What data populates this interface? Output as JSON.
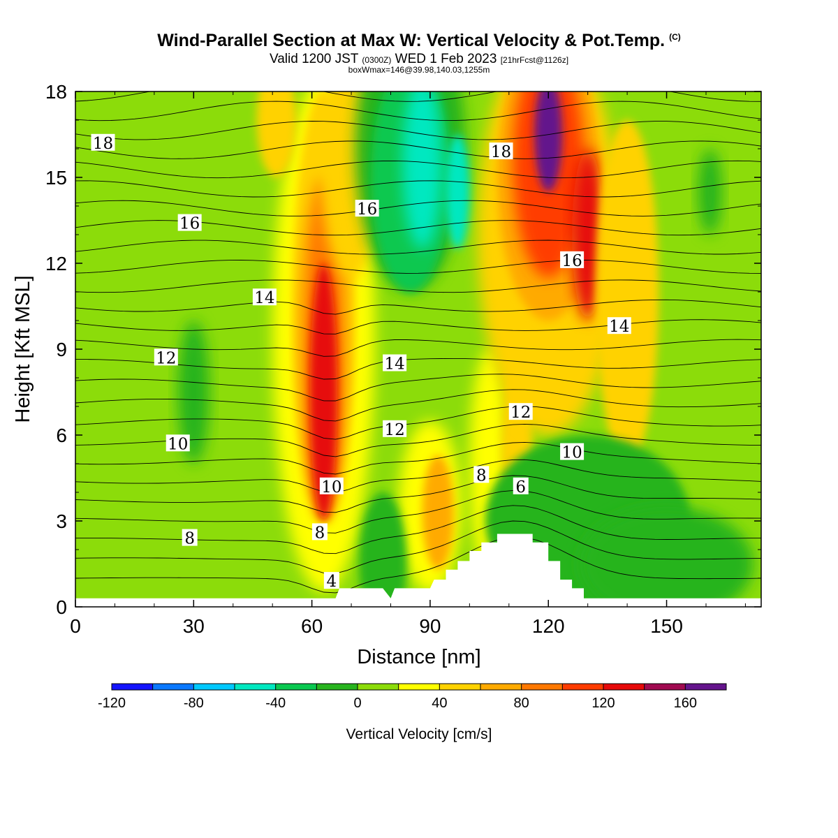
{
  "header": {
    "title": "Wind-Parallel Section at Max W: Vertical Velocity & Pot.Temp.",
    "copyright": "(C)",
    "valid_a": "Valid 1200 JST",
    "valid_b": "(0300Z)",
    "valid_c": "WED 1 Feb 2023",
    "valid_d": "[21hrFcst@1126z]",
    "box": "boxWmax=146@39.98,140.03,1255m"
  },
  "chart_data": {
    "type": "heatmap",
    "title": "Wind-Parallel Section at Max W: Vertical Velocity & Pot.Temp.",
    "xlabel": "Distance [nm]",
    "ylabel": "Height [Kft MSL]",
    "xlim": [
      0,
      174
    ],
    "ylim": [
      0,
      18
    ],
    "x_ticks": [
      "0",
      "30",
      "60",
      "90",
      "120",
      "150"
    ],
    "y_ticks": [
      "0",
      "3",
      "6",
      "9",
      "12",
      "15",
      "18"
    ],
    "colorbar": {
      "label": "Vertical Velocity [cm/s]",
      "ticks": [
        "-120",
        "-80",
        "-40",
        "0",
        "40",
        "80",
        "120",
        "160"
      ],
      "range": [
        -120,
        180
      ],
      "step": 20,
      "colors": [
        "#1414ff",
        "#0a78ff",
        "#00c8ff",
        "#00e8c0",
        "#0ac850",
        "#28b41e",
        "#8cdc0a",
        "#ffff00",
        "#ffd200",
        "#ffaa00",
        "#ff7800",
        "#ff3c00",
        "#e60a0a",
        "#a00a50",
        "#64148c"
      ]
    },
    "contour_labels": [
      {
        "text": "18",
        "x": 7,
        "y": 16.2
      },
      {
        "text": "16",
        "x": 29,
        "y": 13.4
      },
      {
        "text": "14",
        "x": 48,
        "y": 10.8
      },
      {
        "text": "12",
        "x": 23,
        "y": 8.7
      },
      {
        "text": "10",
        "x": 26,
        "y": 5.7
      },
      {
        "text": "8",
        "x": 29,
        "y": 2.4
      },
      {
        "text": "16",
        "x": 74,
        "y": 13.9
      },
      {
        "text": "14",
        "x": 81,
        "y": 8.5
      },
      {
        "text": "12",
        "x": 81,
        "y": 6.2
      },
      {
        "text": "10",
        "x": 65,
        "y": 4.2
      },
      {
        "text": "8",
        "x": 62,
        "y": 2.6
      },
      {
        "text": "4",
        "x": 65,
        "y": 0.9
      },
      {
        "text": "18",
        "x": 108,
        "y": 15.9
      },
      {
        "text": "16",
        "x": 126,
        "y": 12.1
      },
      {
        "text": "14",
        "x": 138,
        "y": 9.8
      },
      {
        "text": "12",
        "x": 113,
        "y": 6.8
      },
      {
        "text": "10",
        "x": 126,
        "y": 5.4
      },
      {
        "text": "8",
        "x": 103,
        "y": 4.6
      },
      {
        "text": "6",
        "x": 113,
        "y": 4.2
      }
    ],
    "terrain": [
      {
        "x": 0,
        "h": 0.3
      },
      {
        "x": 66,
        "h": 0.3
      },
      {
        "x": 67,
        "h": 0.65
      },
      {
        "x": 78,
        "h": 0.65
      },
      {
        "x": 80,
        "h": 0.3
      },
      {
        "x": 81,
        "h": 0.65
      },
      {
        "x": 90,
        "h": 0.65
      },
      {
        "x": 91,
        "h": 0.95
      },
      {
        "x": 94,
        "h": 0.95
      },
      {
        "x": 94,
        "h": 1.3
      },
      {
        "x": 97,
        "h": 1.3
      },
      {
        "x": 97,
        "h": 1.6
      },
      {
        "x": 100,
        "h": 1.6
      },
      {
        "x": 100,
        "h": 1.95
      },
      {
        "x": 103,
        "h": 1.95
      },
      {
        "x": 103,
        "h": 2.25
      },
      {
        "x": 107,
        "h": 2.25
      },
      {
        "x": 107,
        "h": 2.55
      },
      {
        "x": 116,
        "h": 2.55
      },
      {
        "x": 116,
        "h": 2.25
      },
      {
        "x": 120,
        "h": 2.25
      },
      {
        "x": 120,
        "h": 1.6
      },
      {
        "x": 123,
        "h": 1.6
      },
      {
        "x": 123,
        "h": 0.95
      },
      {
        "x": 126,
        "h": 0.95
      },
      {
        "x": 126,
        "h": 0.65
      },
      {
        "x": 129,
        "h": 0.65
      },
      {
        "x": 129,
        "h": 0.3
      },
      {
        "x": 174,
        "h": 0.3
      }
    ]
  }
}
